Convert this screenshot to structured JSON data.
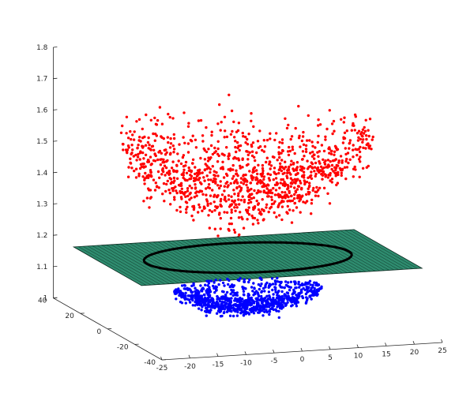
{
  "chart_data": {
    "type": "scatter3d",
    "title": "",
    "xlabel": "",
    "ylabel": "",
    "zlabel": "",
    "grid": false,
    "legend": "none",
    "xlim": [
      -25,
      25
    ],
    "ylim": [
      -40,
      40
    ],
    "zlim": [
      1.0,
      1.8
    ],
    "x_ticks": [
      -25,
      -20,
      -15,
      -10,
      -5,
      0,
      5,
      10,
      15,
      20,
      25
    ],
    "x_tick_labels": [
      "-25",
      "-20",
      "-15",
      "-10",
      "-5",
      "0",
      "5",
      "10",
      "15",
      "20",
      "25"
    ],
    "y_ticks": [
      -40,
      -20,
      0,
      20,
      40
    ],
    "y_tick_labels": [
      "-40",
      "-20",
      "0",
      "20",
      "40"
    ],
    "z_ticks": [
      1.0,
      1.1,
      1.2,
      1.3,
      1.4,
      1.5,
      1.6,
      1.7,
      1.8
    ],
    "z_tick_labels": [
      "1",
      "1.1",
      "1.2",
      "1.3",
      "1.4",
      "1.5",
      "1.6",
      "1.7",
      "1.8"
    ],
    "series": [
      {
        "color": "#ff0000",
        "marker": "dot",
        "count": 1200,
        "surface": "z = 1.37 + 0.00042 * r^2 + noise",
        "x_range": [
          -22,
          22
        ],
        "y_range": [
          -22,
          22
        ],
        "z_range": [
          1.28,
          1.69
        ]
      },
      {
        "color": "#0000ff",
        "marker": "dot",
        "count": 900,
        "surface": "z = 1.04 + 0.00035 * r^2 + noise",
        "x_range": [
          -13,
          13
        ],
        "y_range": [
          -13,
          13
        ],
        "z_range": [
          1.01,
          1.1
        ]
      }
    ],
    "plane": {
      "z": 1.2,
      "x_range": [
        -25,
        25
      ],
      "y_range": [
        -25,
        25
      ],
      "face_color": "#2e8b6e",
      "edge_color": "#0b2a20"
    },
    "circle": {
      "z": 1.2,
      "radius": 18,
      "color": "#000000"
    }
  }
}
